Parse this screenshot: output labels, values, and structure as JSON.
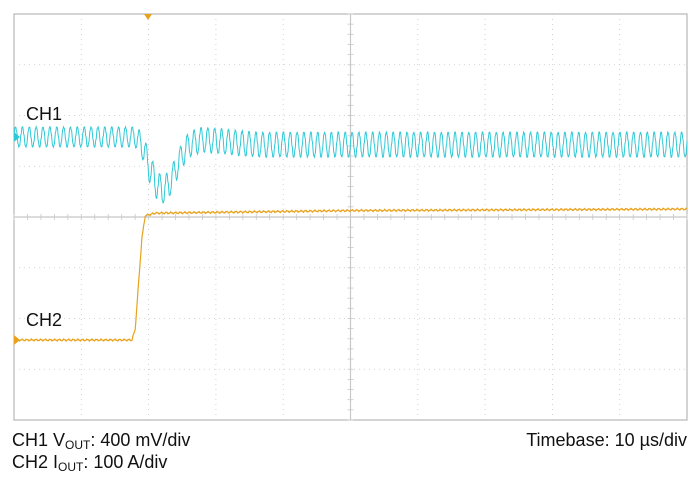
{
  "labels": {
    "ch1": "CH1",
    "ch2": "CH2"
  },
  "captions": {
    "ch1_prefix": "CH1 V",
    "ch1_sub": "OUT",
    "ch1_scale": ": 400 mV/div",
    "ch2_prefix": "CH2 I",
    "ch2_sub": "OUT",
    "ch2_scale": ": 100 A/div",
    "timebase": "Timebase: 10 µs/div"
  },
  "colors": {
    "ch1": "#2fc9d6",
    "ch2": "#e8a21c",
    "grid": "#c8c8c8",
    "border": "#aaaaaa"
  },
  "chart_data": {
    "type": "line",
    "grid": {
      "x_divisions": 10,
      "y_divisions": 8
    },
    "timebase_us_per_div": 10,
    "trigger_time_us": 20,
    "series": [
      {
        "name": "CH1",
        "units": "mV",
        "volts_per_div": 400,
        "ripple_pp": [
          [
            0,
            160
          ],
          [
            18,
            160
          ],
          [
            20,
            240
          ],
          [
            24,
            200
          ],
          [
            28,
            200
          ],
          [
            40,
            200
          ],
          [
            100,
            200
          ]
        ],
        "points": [
          [
            0,
            0
          ],
          [
            18,
            0
          ],
          [
            19,
            -60
          ],
          [
            20,
            -220
          ],
          [
            21,
            -360
          ],
          [
            22,
            -420
          ],
          [
            23,
            -380
          ],
          [
            24,
            -260
          ],
          [
            25,
            -140
          ],
          [
            26,
            -60
          ],
          [
            28,
            -20
          ],
          [
            32,
            -40
          ],
          [
            36,
            -60
          ],
          [
            40,
            -60
          ],
          [
            60,
            -60
          ],
          [
            80,
            -60
          ],
          [
            100,
            -60
          ]
        ]
      },
      {
        "name": "CH2",
        "units": "A",
        "amps_per_div": 100,
        "points": [
          [
            0,
            0
          ],
          [
            17.5,
            0
          ],
          [
            18,
            20
          ],
          [
            19,
            200
          ],
          [
            19.5,
            245
          ],
          [
            21,
            250
          ],
          [
            50,
            255
          ],
          [
            100,
            258
          ]
        ]
      }
    ]
  }
}
